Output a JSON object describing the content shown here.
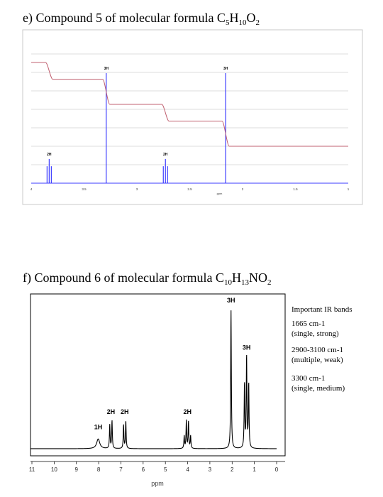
{
  "compound_e": {
    "label_prefix": "e) Compound 5 of molecular formula C",
    "c_sub": "5",
    "h": "H",
    "h_sub": "10",
    "o": "O",
    "o_sub": "2"
  },
  "compound_f": {
    "label_prefix": "f) Compound 6 of molecular formula C",
    "c_sub": "10",
    "h": "H",
    "h_sub": "13",
    "no": "NO",
    "o_sub": "2"
  },
  "ir": {
    "title": "Important IR bands",
    "bands": [
      {
        "value": "1665 cm-1",
        "desc": "(single, strong)"
      },
      {
        "value": "2900-3100 cm-1",
        "desc": "(multiple, weak)"
      },
      {
        "value": "3300 cm-1",
        "desc": "(single, medium)"
      }
    ]
  },
  "chart_data": [
    {
      "type": "nmr-spectrum",
      "xlim": [
        4,
        1
      ],
      "xlabel": "ppm",
      "ticks": [
        "4",
        "3.5",
        "3",
        "2.5",
        "2",
        "1.5",
        "1"
      ],
      "tick_values": [
        4,
        3.5,
        3,
        2.5,
        2,
        1.5,
        1
      ],
      "peaks": [
        {
          "ppm": 3.83,
          "label": "2H",
          "height": 0.22,
          "multiplicity": "triplet"
        },
        {
          "ppm": 3.29,
          "label": "3H",
          "height": 1.0,
          "multiplicity": "singlet"
        },
        {
          "ppm": 2.73,
          "label": "2H",
          "height": 0.22,
          "multiplicity": "triplet"
        },
        {
          "ppm": 2.16,
          "label": "3H",
          "height": 1.0,
          "multiplicity": "singlet"
        }
      ]
    },
    {
      "type": "nmr-spectrum",
      "xlim": [
        11,
        0
      ],
      "xlabel": "ppm",
      "ticks": [
        "11",
        "10",
        "9",
        "8",
        "7",
        "6",
        "5",
        "4",
        "3",
        "2",
        "1",
        "0"
      ],
      "tick_values": [
        11,
        10,
        9,
        8,
        7,
        6,
        5,
        4,
        3,
        2,
        1,
        0
      ],
      "peaks": [
        {
          "ppm": 8.02,
          "label": "1H",
          "height": 0.07,
          "multiplicity": "broad"
        },
        {
          "ppm": 7.45,
          "label": "2H",
          "height": 0.2,
          "multiplicity": "doublet"
        },
        {
          "ppm": 6.83,
          "label": "2H",
          "height": 0.2,
          "multiplicity": "doublet"
        },
        {
          "ppm": 4.01,
          "label": "2H",
          "height": 0.2,
          "multiplicity": "quartet"
        },
        {
          "ppm": 2.05,
          "label": "3H",
          "height": 1.0,
          "multiplicity": "singlet"
        },
        {
          "ppm": 1.35,
          "label": "3H",
          "height": 0.66,
          "multiplicity": "triplet"
        }
      ]
    }
  ]
}
